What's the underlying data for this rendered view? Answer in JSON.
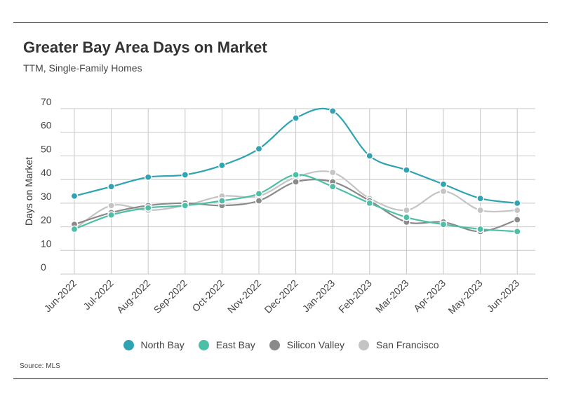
{
  "header": {
    "title": "Greater Bay Area Days on Market",
    "subtitle": "TTM, Single-Family Homes"
  },
  "footer": {
    "source": "Source:  MLS"
  },
  "chart_data": {
    "type": "line",
    "title": "Greater Bay Area Days on Market",
    "subtitle": "TTM, Single-Family Homes",
    "xlabel": "",
    "ylabel": "Days on Market",
    "ylim": [
      0,
      70
    ],
    "yticks": [
      0,
      10,
      20,
      30,
      40,
      50,
      60,
      70
    ],
    "grid": true,
    "smooth": true,
    "legend_position": "bottom",
    "categories": [
      "Jun-2022",
      "Jul-2022",
      "Aug-2022",
      "Sep-2022",
      "Oct-2022",
      "Nov-2022",
      "Dec-2022",
      "Jan-2023",
      "Feb-2023",
      "Mar-2023",
      "Apr-2023",
      "May-2023",
      "Jun-2023"
    ],
    "series": [
      {
        "name": "North Bay",
        "color": "#2fa3b2",
        "values": [
          33,
          37,
          41,
          42,
          46,
          53,
          66,
          69,
          50,
          44,
          38,
          32,
          30
        ]
      },
      {
        "name": "East Bay",
        "color": "#4dbfa7",
        "values": [
          19,
          25,
          28,
          29,
          31,
          34,
          42,
          37,
          30,
          24,
          21,
          19,
          18
        ]
      },
      {
        "name": "Silicon Valley",
        "color": "#8a8a8a",
        "values": [
          21,
          26,
          29,
          30,
          29,
          31,
          39,
          39,
          31,
          22,
          22,
          18,
          23
        ]
      },
      {
        "name": "San Francisco",
        "color": "#c4c4c4",
        "values": [
          19,
          29,
          27,
          29,
          33,
          33,
          41,
          43,
          32,
          27,
          35,
          27,
          27
        ]
      }
    ]
  }
}
